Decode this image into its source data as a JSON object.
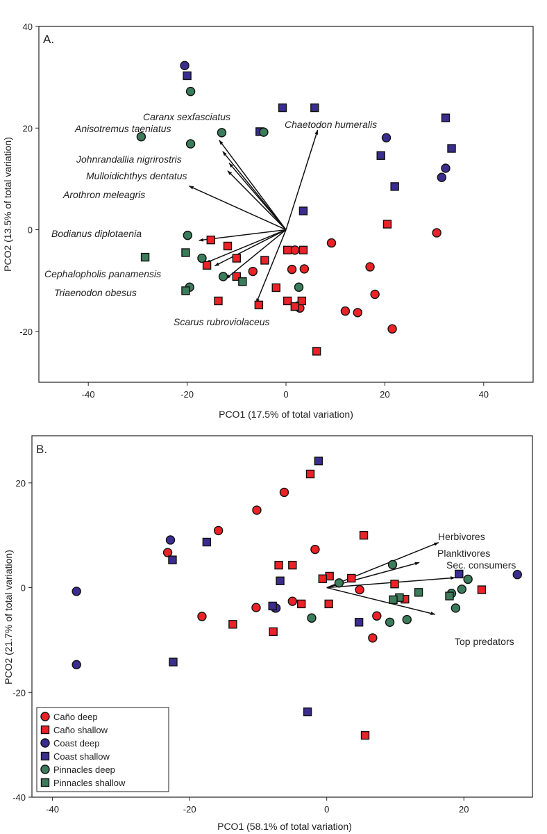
{
  "chart_data": [
    {
      "type": "scatter",
      "panel_label": "A.",
      "xlabel": "PCO1 (17.5% of total variation)",
      "ylabel": "PCO2 (13.5% of total variation)",
      "xlim": [
        -50,
        50
      ],
      "ylim": [
        -30,
        40
      ],
      "xticks": [
        -40,
        -20,
        0,
        20,
        40
      ],
      "yticks": [
        -20,
        0,
        20,
        40
      ],
      "grid": false,
      "series": [
        {
          "name": "Caño deep",
          "marker": "circle",
          "color": "#ec2227",
          "points": [
            [
              1.8,
              -4
            ],
            [
              9.2,
              -2.6
            ],
            [
              17,
              -7.3
            ],
            [
              18,
              -12.7
            ],
            [
              12,
              -16
            ],
            [
              14.5,
              -16.3
            ],
            [
              21.5,
              -19.5
            ],
            [
              30.5,
              -0.6
            ],
            [
              1.2,
              -7.8
            ],
            [
              3.7,
              -7.7
            ],
            [
              2.4,
              -15
            ],
            [
              -6.7,
              -8.2
            ],
            [
              2.8,
              -15.4
            ]
          ]
        },
        {
          "name": "Caño shallow",
          "marker": "square",
          "color": "#ec2227",
          "points": [
            [
              -15.2,
              -2
            ],
            [
              -11.8,
              -3.2
            ],
            [
              -10,
              -5.6
            ],
            [
              -16,
              -7
            ],
            [
              -10,
              -9.2
            ],
            [
              -4.3,
              -6
            ],
            [
              -13.7,
              -14
            ],
            [
              -2,
              -11.4
            ],
            [
              -5.5,
              -14.8
            ],
            [
              0.3,
              -4
            ],
            [
              3.5,
              -4
            ],
            [
              0.3,
              -14
            ],
            [
              3.2,
              -14
            ],
            [
              1.8,
              -15.1
            ],
            [
              6.2,
              -23.9
            ],
            [
              20.5,
              1.1
            ]
          ]
        },
        {
          "name": "Coast deep",
          "marker": "circle",
          "color": "#3b2c90",
          "points": [
            [
              -20.5,
              32.3
            ],
            [
              20.3,
              18.1
            ],
            [
              32.3,
              12.1
            ],
            [
              31.5,
              10.3
            ]
          ]
        },
        {
          "name": "Coast shallow",
          "marker": "square",
          "color": "#3b2c90",
          "points": [
            [
              -20,
              30.3
            ],
            [
              -0.7,
              24
            ],
            [
              5.8,
              24
            ],
            [
              -5.3,
              19.3
            ],
            [
              19.2,
              14.6
            ],
            [
              32.3,
              22
            ],
            [
              33.5,
              16
            ],
            [
              22,
              8.5
            ],
            [
              3.5,
              3.7
            ]
          ]
        },
        {
          "name": "Pinnacles deep",
          "marker": "circle",
          "color": "#3b7c5b",
          "points": [
            [
              -19.3,
              27.2
            ],
            [
              -29.3,
              18.3
            ],
            [
              -13,
              19.1
            ],
            [
              -4.5,
              19.2
            ],
            [
              -19.3,
              16.9
            ],
            [
              -19.9,
              -1.1
            ],
            [
              -17,
              -5.6
            ],
            [
              -12.7,
              -9.2
            ],
            [
              -19.5,
              -11.3
            ],
            [
              2.6,
              -11.3
            ]
          ]
        },
        {
          "name": "Pinnacles shallow",
          "marker": "square",
          "color": "#3b7c5b",
          "points": [
            [
              -28.5,
              -5.4
            ],
            [
              -20.3,
              -4.5
            ],
            [
              -8.8,
              -10.2
            ],
            [
              -20.3,
              -12
            ]
          ]
        }
      ],
      "vectors": [
        {
          "label": "Caranx sexfasciatus",
          "italic": true,
          "end": [
            -13.5,
            17.6
          ]
        },
        {
          "label": "Anisotremus taeniatus",
          "italic": true,
          "end": [
            -12.8,
            15.4
          ]
        },
        {
          "label": "Chaetodon humeralis",
          "italic": true,
          "end": [
            6.4,
            19.6
          ]
        },
        {
          "label": "Johnrandallia nigrirostris",
          "italic": true,
          "end": [
            -11.5,
            13.1
          ]
        },
        {
          "label": "Mulloidichthys dentatus",
          "italic": true,
          "end": [
            -11.8,
            11.6
          ]
        },
        {
          "label": "Arothron meleagris",
          "italic": true,
          "end": [
            -19.6,
            8.6
          ]
        },
        {
          "label": "Bodianus diplotaenia",
          "italic": true,
          "end": [
            -17.6,
            -2.1
          ]
        },
        {
          "label": "Cephalopholis panamensis",
          "italic": true,
          "end": [
            -14.4,
            -7.1
          ]
        },
        {
          "label": "Triaenodon obesus",
          "italic": true,
          "end": [
            -12.1,
            -9.6
          ]
        },
        {
          "label": "Scarus rubroviolaceus",
          "italic": true,
          "end": [
            -6.0,
            -14.4
          ]
        }
      ],
      "extra_vectors": [
        [
          -16.2,
          -6.5
        ]
      ]
    },
    {
      "type": "scatter",
      "panel_label": "B.",
      "xlabel": "PCO1 (58.1% of total variation)",
      "ylabel": "PCO2 (21.7% of total variation)",
      "xlim": [
        -43,
        30
      ],
      "ylim": [
        -40,
        29
      ],
      "xticks": [
        -40,
        -20,
        0,
        20
      ],
      "yticks": [
        -40,
        -20,
        0,
        20
      ],
      "grid": false,
      "series": [
        {
          "name": "Caño deep",
          "marker": "circle",
          "color": "#ec2227",
          "points": [
            [
              -6.2,
              18.2
            ],
            [
              -10.2,
              14.8
            ],
            [
              -15.8,
              10.9
            ],
            [
              -23.2,
              6.7
            ],
            [
              -1.7,
              7.3
            ],
            [
              4.8,
              -0.4
            ],
            [
              7.3,
              -5.4
            ],
            [
              6.7,
              -9.6
            ],
            [
              -5.0,
              -2.6
            ],
            [
              -10.3,
              -3.8
            ],
            [
              -7.5,
              -3.9
            ],
            [
              -18.2,
              -5.5
            ]
          ]
        },
        {
          "name": "Caño shallow",
          "marker": "square",
          "color": "#ec2227",
          "points": [
            [
              -2.4,
              21.7
            ],
            [
              5.4,
              10.0
            ],
            [
              -7.0,
              4.3
            ],
            [
              -5.0,
              4.3
            ],
            [
              0.4,
              2.2
            ],
            [
              -0.6,
              1.7
            ],
            [
              3.6,
              1.8
            ],
            [
              9.9,
              0.7
            ],
            [
              11.4,
              -2.2
            ],
            [
              22.6,
              -0.4
            ],
            [
              -3.7,
              -3.1
            ],
            [
              0.3,
              -3.1
            ],
            [
              -13.7,
              -7.0
            ],
            [
              -7.8,
              -8.4
            ],
            [
              5.6,
              -28.2
            ]
          ]
        },
        {
          "name": "Coast deep",
          "marker": "circle",
          "color": "#3b2c90",
          "points": [
            [
              -22.8,
              9.1
            ],
            [
              -36.5,
              -0.7
            ],
            [
              -36.5,
              -14.7
            ],
            [
              -7.4,
              -3.9
            ],
            [
              27.8,
              2.5
            ]
          ]
        },
        {
          "name": "Coast shallow",
          "marker": "square",
          "color": "#3b2c90",
          "points": [
            [
              -1.2,
              24.2
            ],
            [
              -17.5,
              8.7
            ],
            [
              -22.5,
              5.3
            ],
            [
              -6.8,
              1.3
            ],
            [
              19.3,
              2.6
            ],
            [
              -7.9,
              -3.5
            ],
            [
              4.7,
              -6.6
            ],
            [
              -22.4,
              -14.2
            ],
            [
              -2.8,
              -23.7
            ]
          ]
        },
        {
          "name": "Pinnacles deep",
          "marker": "circle",
          "color": "#3b7c5b",
          "points": [
            [
              9.6,
              4.4
            ],
            [
              1.8,
              0.9
            ],
            [
              20.6,
              1.6
            ],
            [
              19.7,
              -0.3
            ],
            [
              18.2,
              -1.1
            ],
            [
              18.8,
              -3.9
            ],
            [
              -2.2,
              -5.8
            ],
            [
              9.2,
              -6.6
            ],
            [
              11.7,
              -6.1
            ]
          ]
        },
        {
          "name": "Pinnacles shallow",
          "marker": "square",
          "color": "#3b7c5b",
          "points": [
            [
              13.4,
              -0.9
            ],
            [
              10.6,
              -1.9
            ],
            [
              9.7,
              -2.3
            ],
            [
              17.9,
              -1.6
            ]
          ]
        }
      ],
      "vectors": [
        {
          "label": "Herbivores",
          "italic": false,
          "end": [
            16.3,
            8.6
          ]
        },
        {
          "label": "Planktivores",
          "italic": false,
          "end": [
            13.5,
            4.8
          ]
        },
        {
          "label": "Sec. consumers",
          "italic": false,
          "end": [
            18.7,
            1.9
          ]
        },
        {
          "label": "Top predators",
          "italic": false,
          "end": [
            15.8,
            -5.1
          ]
        }
      ],
      "extra_vectors": [],
      "legend": {
        "placement": "bottom-left",
        "entries": [
          {
            "label": "Caño deep",
            "marker": "circle",
            "color": "#ec2227"
          },
          {
            "label": "Caño shallow",
            "marker": "square",
            "color": "#ec2227"
          },
          {
            "label": "Coast deep",
            "marker": "circle",
            "color": "#3b2c90"
          },
          {
            "label": "Coast shallow",
            "marker": "square",
            "color": "#3b2c90"
          },
          {
            "label": "Pinnacles deep",
            "marker": "circle",
            "color": "#3b7c5b"
          },
          {
            "label": "Pinnacles shallow",
            "marker": "square",
            "color": "#3b7c5b"
          }
        ]
      }
    }
  ]
}
